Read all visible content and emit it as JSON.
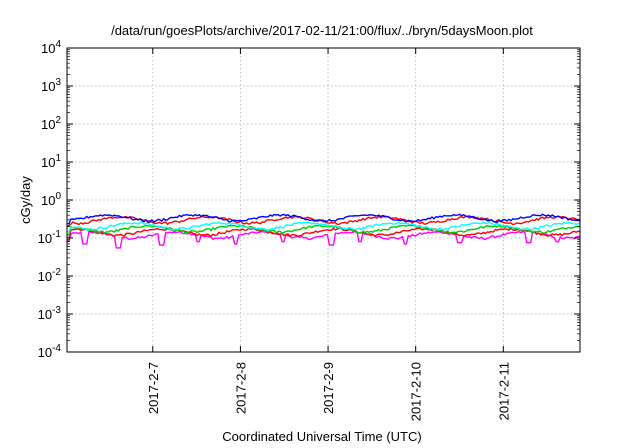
{
  "chart_data": {
    "type": "line",
    "title": "/data/run/goesPlots/archive/2017-02-11/21:00/flux/../bryn/5daysMoon.plot",
    "xlabel": "Coordinated Universal Time (UTC)",
    "ylabel": "cGy/day",
    "yscale": "log",
    "ylim": [
      0.0001,
      10000
    ],
    "xlim": [
      "2017-02-06 00:30",
      "2017-02-11 21:00"
    ],
    "grid": true,
    "x_ticks": [
      {
        "date": "2017-02-07",
        "label": "2017-2-7"
      },
      {
        "date": "2017-02-08",
        "label": "2017-2-8"
      },
      {
        "date": "2017-02-09",
        "label": "2017-2-9"
      },
      {
        "date": "2017-02-10",
        "label": "2017-2-10"
      },
      {
        "date": "2017-02-11",
        "label": "2017-2-11"
      }
    ],
    "y_ticks": [
      {
        "value": 0.0001,
        "base": "10",
        "exp": "-4"
      },
      {
        "value": 0.001,
        "base": "10",
        "exp": "-3"
      },
      {
        "value": 0.01,
        "base": "10",
        "exp": "-2"
      },
      {
        "value": 0.1,
        "base": "10",
        "exp": "-1"
      },
      {
        "value": 1,
        "base": "10",
        "exp": "0"
      },
      {
        "value": 10,
        "base": "10",
        "exp": "1"
      },
      {
        "value": 100,
        "base": "10",
        "exp": "2"
      },
      {
        "value": 1000,
        "base": "10",
        "exp": "3"
      },
      {
        "value": 10000,
        "base": "10",
        "exp": "4"
      }
    ],
    "series": [
      {
        "color": "#ff00ff",
        "level": 0.12,
        "dips": [
          [
            0.035,
            0.07
          ],
          [
            0.1,
            0.055
          ],
          [
            0.185,
            0.065
          ],
          [
            0.255,
            0.08
          ],
          [
            0.33,
            0.07
          ],
          [
            0.42,
            0.08
          ],
          [
            0.515,
            0.065
          ],
          [
            0.57,
            0.08
          ],
          [
            0.66,
            0.07
          ],
          [
            0.765,
            0.075
          ],
          [
            0.9,
            0.075
          ],
          [
            0.955,
            0.08
          ]
        ]
      },
      {
        "color": "#ff0000",
        "level": 0.145,
        "dips": []
      },
      {
        "color": "#00cc00",
        "level": 0.175,
        "dips": []
      },
      {
        "color": "#00ffff",
        "level": 0.21,
        "dips": []
      },
      {
        "color": "#ff0000",
        "level": 0.3,
        "dips": []
      },
      {
        "color": "#0000ff",
        "level": 0.34,
        "dips": []
      }
    ]
  }
}
